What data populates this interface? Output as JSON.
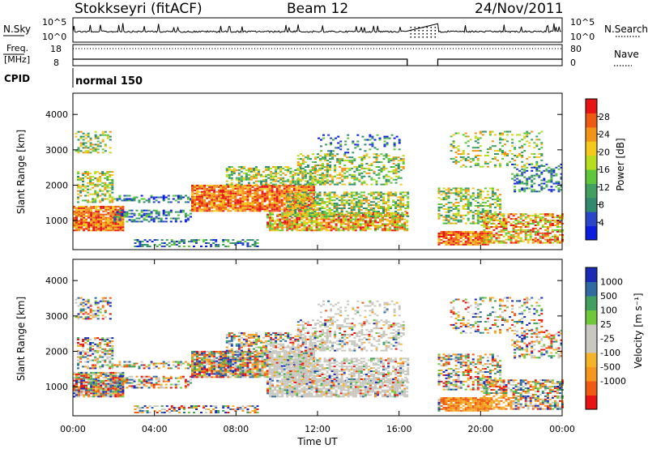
{
  "header": {
    "station": "Stokkseyri (fitACF)",
    "beam": "Beam 12",
    "date": "24/Nov/2011"
  },
  "noise_panel": {
    "left_label": "N.Sky",
    "right_label": "N.Search",
    "left_ticks": [
      "10^5",
      "10^0"
    ],
    "right_ticks": [
      "10^5",
      "10^0"
    ]
  },
  "freq_panel": {
    "left_label_1": "Freq.",
    "left_label_2": "[MHz]",
    "right_label": "Nave",
    "left_ticks": [
      "18",
      "8"
    ],
    "right_ticks": [
      "80",
      "0"
    ]
  },
  "cpid_panel": {
    "label": "CPID",
    "value": "normal 150"
  },
  "colors": {
    "power_scale": [
      "#0a1edc",
      "#2a46c8",
      "#2f8a6e",
      "#3fa060",
      "#5ec83a",
      "#b8dc1e",
      "#f5c81e",
      "#f29418",
      "#ee5a14",
      "#e61414"
    ],
    "velocity_scale": [
      "#e61414",
      "#f05a14",
      "#f5961e",
      "#f5b428",
      "#c8c8c0",
      "#c8c8c0",
      "#6ec83a",
      "#3fa060",
      "#2f6aa0",
      "#1a2ab4"
    ]
  },
  "chart_data": [
    {
      "type": "heatmap",
      "title": "",
      "ylabel": "Slant Range [km]",
      "xlabel": "",
      "ylim": [
        180,
        4600
      ],
      "xlim": [
        0,
        24
      ],
      "y_ticks": [
        "4000",
        "3000",
        "2000",
        "1000"
      ],
      "colorbar": {
        "label": "Power [dB]",
        "range": [
          0,
          32
        ],
        "ticks": [
          "28",
          "24",
          "20",
          "16",
          "12",
          "8",
          "4"
        ]
      }
    },
    {
      "type": "heatmap",
      "title": "",
      "ylabel": "Slant Range [km]",
      "xlabel": "Time UT",
      "ylim": [
        180,
        4600
      ],
      "xlim": [
        0,
        24
      ],
      "y_ticks": [
        "4000",
        "3000",
        "2000",
        "1000"
      ],
      "x_ticks": [
        "00:00",
        "04:00",
        "08:00",
        "12:00",
        "16:00",
        "20:00",
        "00:00"
      ],
      "colorbar": {
        "label": "Velocity [m s⁻¹]",
        "ticks": [
          "1000",
          "500",
          "100",
          "25",
          "-25",
          "-100",
          "-500",
          "-1000"
        ]
      }
    }
  ]
}
